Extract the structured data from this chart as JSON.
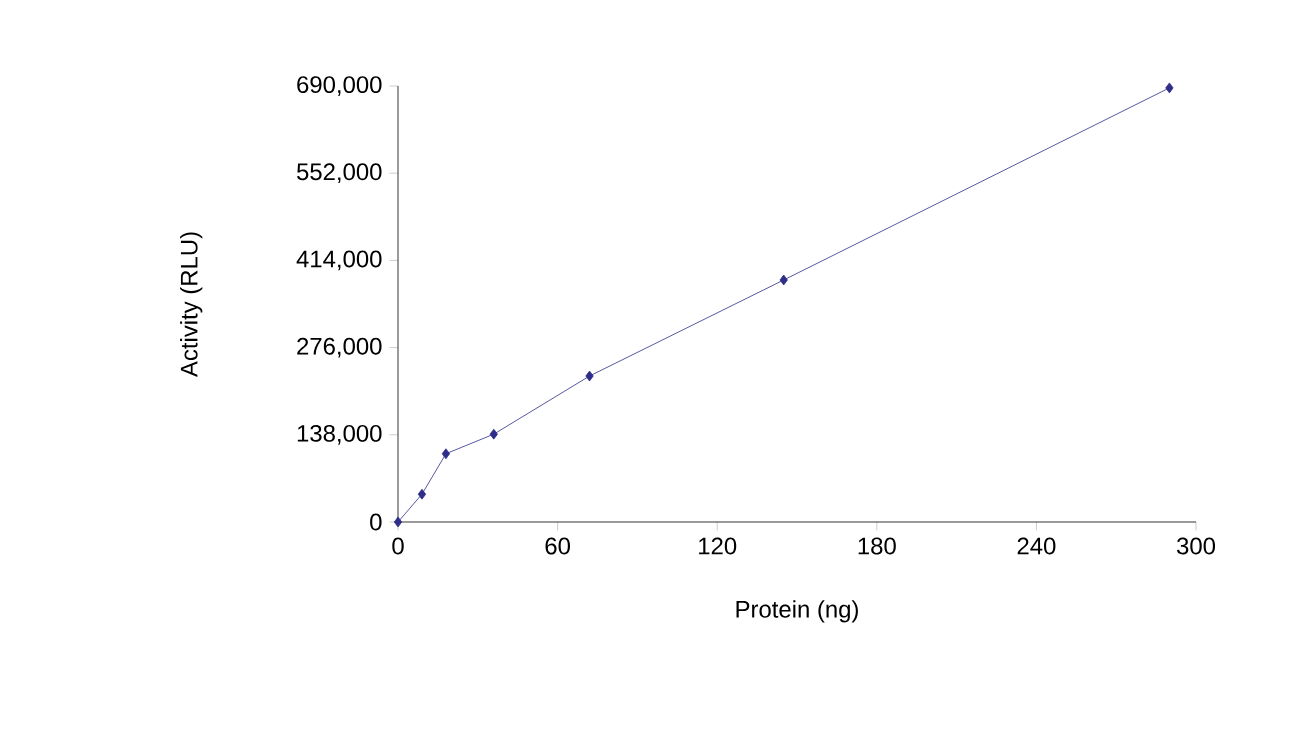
{
  "chart_data": {
    "type": "line",
    "xlabel": "Protein (ng)",
    "ylabel": "Activity (RLU)",
    "x": [
      0,
      9,
      18,
      36,
      72,
      145,
      290
    ],
    "series": [
      {
        "color": "#2e2e8a",
        "values": [
          0,
          44000,
          108000,
          139000,
          231000,
          383000,
          687000
        ]
      }
    ],
    "xlim": [
      0,
      300
    ],
    "xticks": [
      0,
      60,
      120,
      180,
      240,
      300
    ],
    "ylim": [
      0,
      690000
    ],
    "yticks": [
      {
        "value": 0,
        "label": "0"
      },
      {
        "value": 138000,
        "label": "138,000"
      },
      {
        "value": 276000,
        "label": "276,000"
      },
      {
        "value": 414000,
        "label": "414,000"
      },
      {
        "value": 552000,
        "label": "552,000"
      },
      {
        "value": 690000,
        "label": "690,000"
      }
    ],
    "grid": false,
    "marker": "diamond",
    "line_style": "solid"
  }
}
